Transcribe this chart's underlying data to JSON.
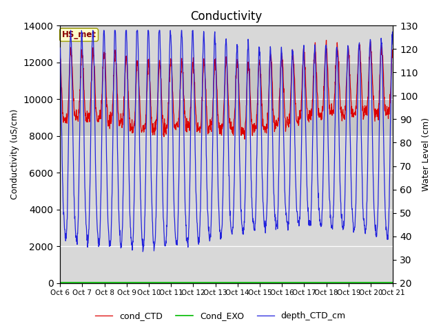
{
  "title": "Conductivity",
  "ylabel_left": "Conductivity (uS/cm)",
  "ylabel_right": "Water Level (cm)",
  "ylim_left": [
    0,
    14000
  ],
  "ylim_right": [
    20,
    130
  ],
  "xlim": [
    0,
    15
  ],
  "xtick_labels": [
    "Oct 6",
    "Oct 7",
    "Oct 8",
    "Oct 9",
    "Oct 10",
    "Oct 11",
    "Oct 12",
    "Oct 13",
    "Oct 14",
    "Oct 15",
    "Oct 16",
    "Oct 17",
    "Oct 18",
    "Oct 19",
    "Oct 20",
    "Oct 21"
  ],
  "yticks_left": [
    0,
    2000,
    4000,
    6000,
    8000,
    10000,
    12000,
    14000
  ],
  "yticks_right": [
    20,
    30,
    40,
    50,
    60,
    70,
    80,
    90,
    100,
    110,
    120,
    130
  ],
  "legend_labels": [
    "cond_CTD",
    "Cond_EXO",
    "depth_CTD_cm"
  ],
  "line_colors": [
    "#dd0000",
    "#00bb00",
    "#2222dd"
  ],
  "background_color": "#ffffff",
  "plot_bg_color": "#d8d8d8",
  "shade_ymin": 8000,
  "shade_ymax": 12000,
  "annotation_text": "HS_met",
  "title_fontsize": 12,
  "axis_fontsize": 9,
  "legend_fontsize": 9,
  "figsize": [
    6.4,
    4.8
  ],
  "dpi": 100
}
